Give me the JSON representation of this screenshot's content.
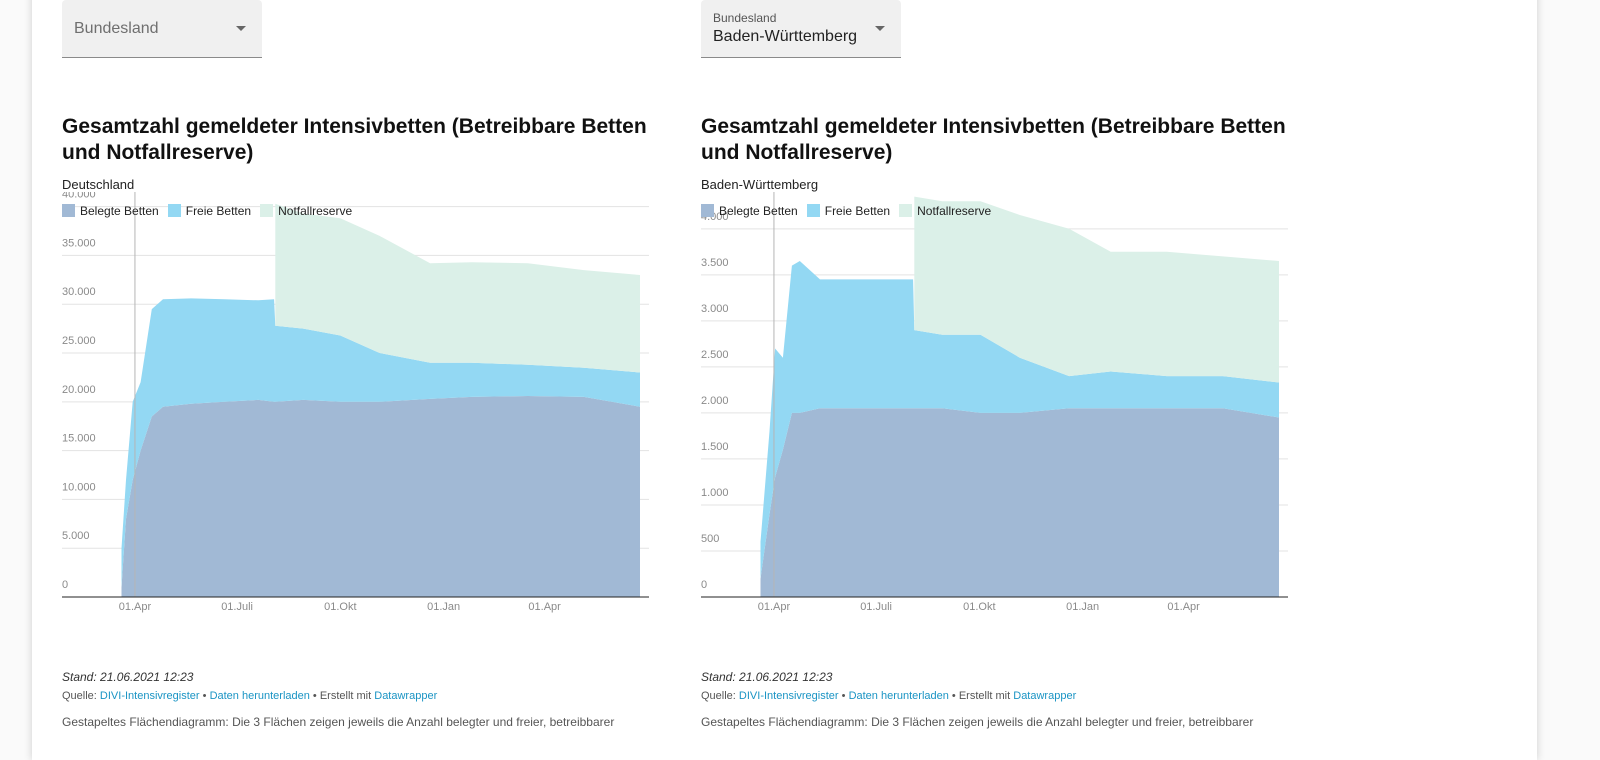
{
  "selects": [
    {
      "label": "Bundesland"
    },
    {
      "label": "Bundesland",
      "value": "Baden-Württemberg"
    }
  ],
  "chart_data": [
    {
      "type": "stacked-area",
      "title": "Gesamtzahl gemeldeter Intensivbetten (Betreibbare Betten und Notfallreserve)",
      "subtitle": "Deutschland",
      "x": [
        -12,
        -8,
        -2,
        5,
        15,
        25,
        50,
        80,
        110,
        124,
        125,
        150,
        183,
        218,
        263,
        300,
        350,
        400,
        450
      ],
      "series": [
        {
          "name": "Belegte Betten",
          "color": "#a1b9d5",
          "values": [
            1000,
            8000,
            12000,
            15000,
            18500,
            19500,
            19800,
            20000,
            20200,
            20000,
            20000,
            20200,
            20000,
            20000,
            20300,
            20500,
            20600,
            20500,
            19500
          ]
        },
        {
          "name": "Freie Betten",
          "color": "#93d8f3",
          "values": [
            4000,
            4000,
            8000,
            7000,
            11000,
            11000,
            10800,
            10500,
            10200,
            10500,
            7800,
            7300,
            6800,
            5000,
            3700,
            3500,
            3200,
            3000,
            3500
          ]
        },
        {
          "name": "Notfallreserve",
          "color": "#dbf0e8",
          "values": [
            null,
            null,
            null,
            null,
            null,
            null,
            null,
            null,
            null,
            null,
            12500,
            11800,
            12000,
            12000,
            10200,
            10300,
            10400,
            10000,
            10000
          ]
        }
      ],
      "xlim": [
        -65,
        458
      ],
      "xticks": [
        {
          "value": 0,
          "label": "01.Apr"
        },
        {
          "value": 91,
          "label": "01.Juli"
        },
        {
          "value": 183,
          "label": "01.Okt"
        },
        {
          "value": 275,
          "label": "01.Jan"
        },
        {
          "value": 365,
          "label": "01.Apr"
        }
      ],
      "ylim": [
        0,
        41500
      ],
      "yticks": [
        0,
        {
          "value": 5000,
          "label": "5.000"
        },
        {
          "value": 10000,
          "label": "10.000"
        },
        {
          "value": 15000,
          "label": "15.000"
        },
        {
          "value": 20000,
          "label": "20.000"
        },
        {
          "value": 25000,
          "label": "25.000"
        },
        {
          "value": 30000,
          "label": "30.000"
        },
        {
          "value": 35000,
          "label": "35.000"
        },
        {
          "value": 40000,
          "label": "40.000"
        }
      ],
      "grid": true
    },
    {
      "type": "stacked-area",
      "title": "Gesamtzahl gemeldeter Intensivbetten (Betreibbare Betten und Notfallreserve)",
      "subtitle": "Baden-Württemberg",
      "x": [
        -12,
        -4,
        1,
        8,
        16,
        23,
        41,
        80,
        124,
        125,
        150,
        184,
        219,
        263,
        300,
        350,
        400,
        450
      ],
      "series": [
        {
          "name": "Belegte Betten",
          "color": "#a1b9d5",
          "values": [
            200,
            900,
            1300,
            1600,
            2000,
            2000,
            2050,
            2050,
            2050,
            2050,
            2050,
            2000,
            2000,
            2050,
            2050,
            2050,
            2050,
            1950
          ]
        },
        {
          "name": "Freie Betten",
          "color": "#93d8f3",
          "values": [
            400,
            900,
            1400,
            1000,
            1600,
            1650,
            1400,
            1400,
            1400,
            850,
            800,
            850,
            600,
            350,
            400,
            350,
            350,
            380
          ]
        },
        {
          "name": "Notfallreserve",
          "color": "#dbf0e8",
          "values": [
            null,
            null,
            null,
            null,
            null,
            null,
            null,
            null,
            null,
            1450,
            1450,
            1450,
            1550,
            1600,
            1300,
            1350,
            1300,
            1320
          ]
        }
      ],
      "xlim": [
        -65,
        458
      ],
      "xticks": [
        {
          "value": 0,
          "label": "01.Apr"
        },
        {
          "value": 91,
          "label": "01.Juli"
        },
        {
          "value": 183,
          "label": "01.Okt"
        },
        {
          "value": 275,
          "label": "01.Jan"
        },
        {
          "value": 365,
          "label": "01.Apr"
        }
      ],
      "ylim": [
        0,
        4400
      ],
      "yticks": [
        0,
        500,
        {
          "value": 1000,
          "label": "1.000"
        },
        {
          "value": 1500,
          "label": "1.500"
        },
        {
          "value": 2000,
          "label": "2.000"
        },
        {
          "value": 2500,
          "label": "2.500"
        },
        {
          "value": 3000,
          "label": "3.000"
        },
        {
          "value": 3500,
          "label": "3.500"
        },
        {
          "value": 4000,
          "label": "4.000"
        }
      ],
      "grid": true
    }
  ],
  "footers": [
    {
      "stand": "Stand: 21.06.2021 12:23",
      "source": "Quelle:",
      "source_link": "DIVI-Intensivregister",
      "separator": "•",
      "download": "Daten herunterladen",
      "made_with": "Erstellt mit",
      "made_with_link": "Datawrapper",
      "description": "Gestapeltes Flächendiagramm: Die 3 Flächen zeigen jeweils die Anzahl belegter und freier, betreibbarer"
    },
    {
      "stand": "Stand: 21.06.2021 12:23",
      "source": "Quelle:",
      "source_link": "DIVI-Intensivregister",
      "separator": "•",
      "download": "Daten herunterladen",
      "made_with": "Erstellt mit",
      "made_with_link": "Datawrapper",
      "description": "Gestapeltes Flächendiagramm: Die 3 Flächen zeigen jeweils die Anzahl belegter und freier, betreibbarer"
    }
  ]
}
